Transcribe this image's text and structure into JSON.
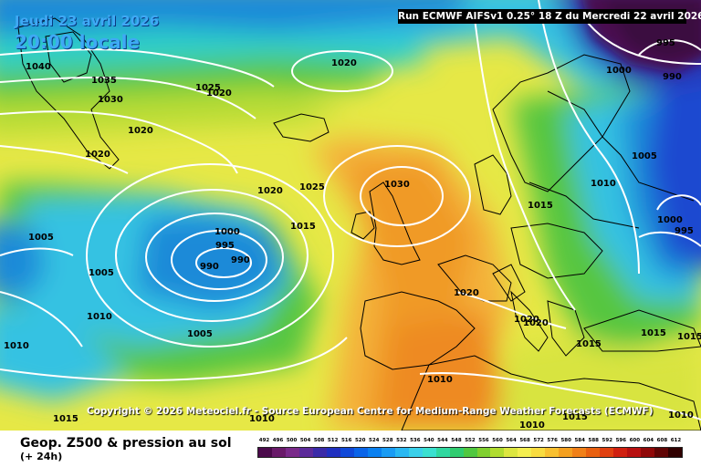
{
  "header": {
    "date_line": "Jeudi 23 avril 2026",
    "time_line": "20:00 locale",
    "run_info": "Run ECMWF AIFSv1 0.25° 18 Z du Mercredi 22 avril 2026"
  },
  "copyright": "Copyright © 2026 Meteociel.fr - Source European Centre for Medium-Range Weather Forecasts (ECMWF)",
  "footer": {
    "title": "Geop. Z500 & pression au sol",
    "subtitle": "(+ 24h)"
  },
  "legend": {
    "values": [
      "492",
      "496",
      "500",
      "504",
      "508",
      "512",
      "516",
      "520",
      "524",
      "528",
      "532",
      "536",
      "540",
      "544",
      "548",
      "552",
      "556",
      "560",
      "564",
      "568",
      "572",
      "576",
      "580",
      "584",
      "588",
      "592",
      "596",
      "600",
      "604",
      "608",
      "612"
    ],
    "colors": [
      "#4b0a4b",
      "#6a1a6a",
      "#7a2a8a",
      "#5c2a9a",
      "#3a2aa8",
      "#2030c0",
      "#1048d8",
      "#0a64e8",
      "#0a80f0",
      "#1a9cf4",
      "#2ab8f2",
      "#3ad0ea",
      "#3ae0d0",
      "#30d8a0",
      "#30cc70",
      "#50c840",
      "#80d030",
      "#b0dc30",
      "#dce640",
      "#f4ee50",
      "#f8dc40",
      "#f8c030",
      "#f4a020",
      "#f08018",
      "#e86010",
      "#e04010",
      "#d02010",
      "#b81010",
      "#900808",
      "#600404",
      "#300000"
    ]
  },
  "isobars": [
    {
      "t": "1040",
      "c": "#000"
    },
    {
      "t": "1035",
      "c": "#000"
    },
    {
      "t": "1030",
      "c": "#000"
    },
    {
      "t": "1025",
      "c": "#000"
    },
    {
      "t": "1020",
      "c": "#000"
    },
    {
      "t": "1020",
      "c": "#000"
    },
    {
      "t": "1020",
      "c": "#000"
    },
    {
      "t": "1020",
      "c": "#000"
    },
    {
      "t": "1025",
      "c": "#000"
    },
    {
      "t": "1030",
      "c": "#000"
    },
    {
      "t": "1020",
      "c": "#000"
    },
    {
      "t": "1015",
      "c": "#000"
    },
    {
      "t": "1000",
      "c": "#000"
    },
    {
      "t": "995",
      "c": "#000"
    },
    {
      "t": "990",
      "c": "#000"
    },
    {
      "t": "990",
      "c": "#000"
    },
    {
      "t": "1005",
      "c": "#000"
    },
    {
      "t": "1005",
      "c": "#000"
    },
    {
      "t": "1010",
      "c": "#000"
    },
    {
      "t": "1005",
      "c": "#000"
    },
    {
      "t": "1010",
      "c": "#000"
    },
    {
      "t": "1020",
      "c": "#000"
    },
    {
      "t": "1020",
      "c": "#000"
    },
    {
      "t": "1020",
      "c": "#000"
    },
    {
      "t": "1015",
      "c": "#000"
    },
    {
      "t": "1010",
      "c": "#000"
    },
    {
      "t": "1005",
      "c": "#000"
    },
    {
      "t": "1000",
      "c": "#000"
    },
    {
      "t": "995",
      "c": "#000"
    },
    {
      "t": "995",
      "c": "#000"
    },
    {
      "t": "1000",
      "c": "#000"
    },
    {
      "t": "990",
      "c": "#000"
    },
    {
      "t": "1015",
      "c": "#000"
    },
    {
      "t": "1015",
      "c": "#000"
    },
    {
      "t": "1015",
      "c": "#000"
    },
    {
      "t": "1010",
      "c": "#000"
    },
    {
      "t": "1010",
      "c": "#000"
    },
    {
      "t": "1010",
      "c": "#000"
    },
    {
      "t": "1015",
      "c": "#000"
    },
    {
      "t": "1010",
      "c": "#000"
    },
    {
      "t": "1015",
      "c": "#000"
    }
  ]
}
